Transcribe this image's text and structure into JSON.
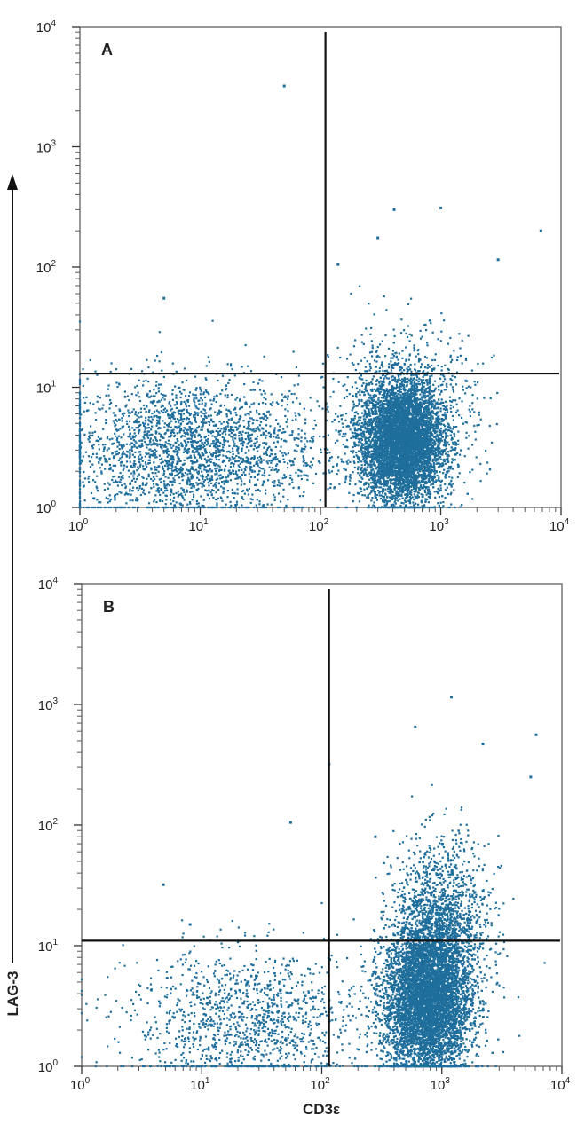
{
  "chart_data": {
    "type": "scatter",
    "xlabel": "CD3ε",
    "ylabel": "LAG-3",
    "xscale": "log",
    "yscale": "log",
    "xlim": [
      1,
      10000
    ],
    "ylim": [
      1,
      10000
    ],
    "tick_values": [
      1,
      10,
      100,
      1000,
      10000
    ],
    "tick_base": "10",
    "tick_exponents": [
      "0",
      "1",
      "2",
      "3",
      "4"
    ],
    "point_color": "#1f6e9c",
    "panels": [
      {
        "label": "A",
        "x_gate": 110,
        "y_gate": 13,
        "clusters": [
          {
            "name": "lower-left diffuse",
            "cx": 8,
            "cy": 3,
            "sx_decades": 0.55,
            "sy_decades": 0.3,
            "count": 2600
          },
          {
            "name": "CD3+ dense",
            "cx": 480,
            "cy": 3.5,
            "sx_decades": 0.17,
            "sy_decades": 0.25,
            "count": 6000
          },
          {
            "name": "CD3+ scatter",
            "cx": 500,
            "cy": 6,
            "sx_decades": 0.3,
            "sy_decades": 0.35,
            "count": 900
          }
        ],
        "outliers": [
          [
            50,
            3200
          ],
          [
            1000,
            310
          ],
          [
            410,
            300
          ],
          [
            300,
            175
          ],
          [
            6800,
            200
          ],
          [
            3000,
            115
          ],
          [
            140,
            105
          ],
          [
            5,
            55
          ]
        ]
      },
      {
        "label": "B",
        "x_gate": 115,
        "y_gate": 11,
        "clusters": [
          {
            "name": "lower-left diffuse",
            "cx": 25,
            "cy": 2.3,
            "sx_decades": 0.5,
            "sy_decades": 0.3,
            "count": 1300
          },
          {
            "name": "CD3+ dense",
            "cx": 750,
            "cy": 3.5,
            "sx_decades": 0.18,
            "sy_decades": 0.32,
            "count": 7500
          },
          {
            "name": "CD3+ LAG-3 tail",
            "cx": 1000,
            "cy": 15,
            "sx_decades": 0.2,
            "sy_decades": 0.35,
            "count": 1500
          }
        ],
        "outliers": [
          [
            1200,
            1150
          ],
          [
            600,
            650
          ],
          [
            6100,
            560
          ],
          [
            2200,
            470
          ],
          [
            5500,
            250
          ],
          [
            115,
            320
          ],
          [
            55,
            105
          ],
          [
            280,
            80
          ],
          [
            4.8,
            32
          ],
          [
            8,
            15
          ]
        ]
      }
    ]
  }
}
